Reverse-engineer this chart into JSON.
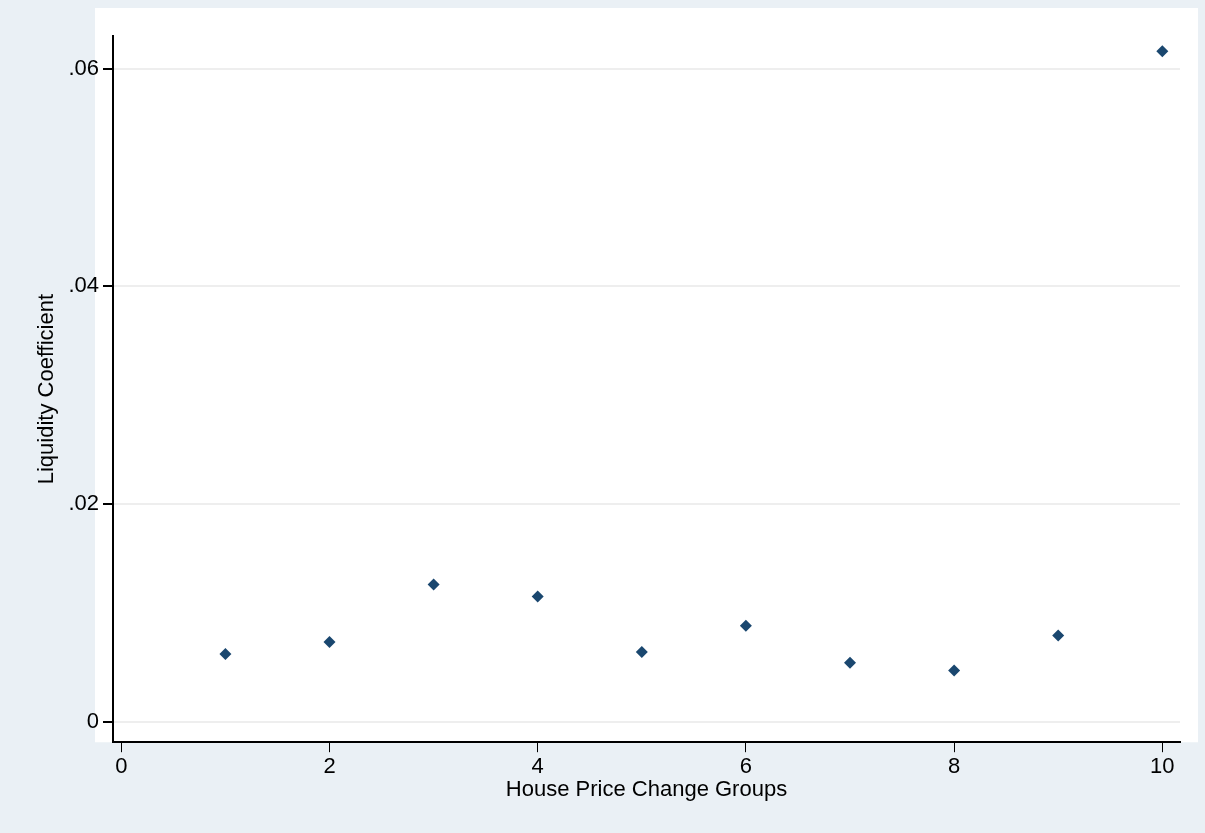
{
  "chart_data": {
    "type": "scatter",
    "xlabel": "House Price Change Groups",
    "ylabel": "Liquidity Coefficient",
    "x": [
      1,
      2,
      3,
      4,
      5,
      6,
      7,
      8,
      9,
      10
    ],
    "series": [
      {
        "color": "#1a476f",
        "values": [
          0.0062,
          0.0073,
          0.0126,
          0.0115,
          0.0064,
          0.0088,
          0.0054,
          0.0047,
          0.0079,
          0.0616
        ]
      }
    ],
    "xlim": [
      -0.08,
      10.17
    ],
    "xticks": [
      0,
      2,
      4,
      6,
      8,
      10
    ],
    "ylim": [
      -0.0019,
      0.063
    ],
    "yticks": [
      0,
      {
        "value": 0.02,
        "label": ".02"
      },
      {
        "value": 0.04,
        "label": ".04"
      },
      {
        "value": 0.06,
        "label": ".06"
      }
    ],
    "grid": "y",
    "legend": false,
    "marker": "diamond"
  }
}
